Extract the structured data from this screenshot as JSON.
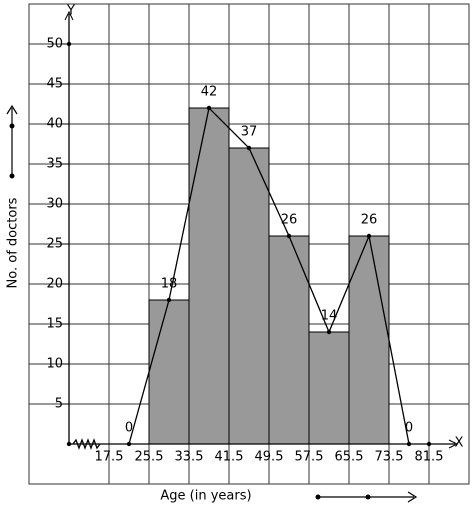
{
  "chart_data": {
    "type": "histogram",
    "x_label": "Age (in years)",
    "y_label": "No. of doctors",
    "x_axis_name": "X",
    "y_axis_name": "Y",
    "bins": [
      25.5,
      33.5,
      41.5,
      49.5,
      57.5,
      65.5,
      73.5
    ],
    "values": [
      18,
      42,
      37,
      26,
      14,
      26
    ],
    "color": "#999999",
    "polygon": {
      "x": [
        21.5,
        29.5,
        37.5,
        45.5,
        53.5,
        61.5,
        69.5,
        77.5
      ],
      "values": [
        0,
        18,
        42,
        37,
        26,
        14,
        26,
        0
      ],
      "color": "#000000"
    },
    "xlim": [
      1.5,
      89.5
    ],
    "ylim": [
      -5,
      55
    ],
    "xticks": [
      17.5,
      25.5,
      33.5,
      41.5,
      49.5,
      57.5,
      65.5,
      73.5,
      81.5
    ],
    "yticks": [
      5,
      10,
      15,
      20,
      25,
      30,
      35,
      40,
      45,
      50
    ],
    "grid": true
  }
}
